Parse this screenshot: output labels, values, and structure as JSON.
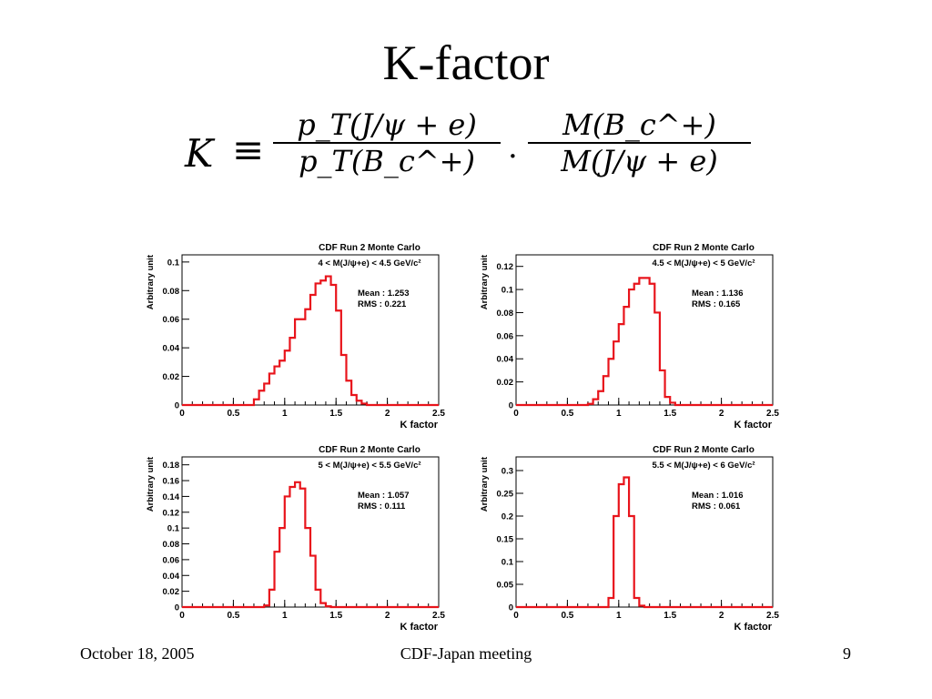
{
  "slide": {
    "title": "K-factor",
    "footer_date": "October 18, 2005",
    "footer_center": "CDF-Japan meeting",
    "footer_page": "9"
  },
  "formula": {
    "lhs": "K",
    "equiv": "≡",
    "frac1_num": "p_T(J/ψ + e)",
    "frac1_den": "p_T(B_c^+)",
    "dot": "·",
    "frac2_num": "M(B_c^+)",
    "frac2_den": "M(J/ψ + e)"
  },
  "colors": {
    "histogram": "#e8141b",
    "axis": "#000000",
    "background": "#ffffff"
  },
  "chart_data": [
    {
      "type": "histogram",
      "title": "CDF Run 2 Monte Carlo",
      "subtitle": "4 < M(J/ψ+e) < 4.5 GeV/c²",
      "xlabel": "K factor",
      "ylabel": "Arbitrary unit",
      "stats": [
        "Mean : 1.253",
        "RMS : 0.221"
      ],
      "xlim": [
        0,
        2.5
      ],
      "ylim": [
        0,
        0.105
      ],
      "xticks": [
        0,
        0.5,
        1,
        1.5,
        2,
        2.5
      ],
      "xtick_labels": [
        "0",
        "0.5",
        "1",
        "1.5",
        "2",
        "2.5"
      ],
      "yticks": [
        0,
        0.02,
        0.04,
        0.06,
        0.08,
        0.1
      ],
      "ytick_labels": [
        "0",
        "0.02",
        "0.04",
        "0.06",
        "0.08",
        "0.1"
      ],
      "bin_width": 0.05,
      "values": [
        0,
        0,
        0,
        0,
        0,
        0,
        0,
        0,
        0,
        0,
        0,
        0,
        0,
        0,
        0.004,
        0.01,
        0.015,
        0.022,
        0.027,
        0.031,
        0.038,
        0.047,
        0.06,
        0.06,
        0.067,
        0.077,
        0.085,
        0.087,
        0.09,
        0.084,
        0.066,
        0.035,
        0.017,
        0.007,
        0.003,
        0.001,
        0,
        0,
        0,
        0,
        0,
        0,
        0,
        0,
        0,
        0,
        0,
        0,
        0,
        0
      ]
    },
    {
      "type": "histogram",
      "title": "CDF Run 2 Monte Carlo",
      "subtitle": "4.5 < M(J/ψ+e) < 5 GeV/c²",
      "xlabel": "K factor",
      "ylabel": "Arbitrary unit",
      "stats": [
        "Mean : 1.136",
        "RMS : 0.165"
      ],
      "xlim": [
        0,
        2.5
      ],
      "ylim": [
        0,
        0.13
      ],
      "xticks": [
        0,
        0.5,
        1,
        1.5,
        2,
        2.5
      ],
      "xtick_labels": [
        "0",
        "0.5",
        "1",
        "1.5",
        "2",
        "2.5"
      ],
      "yticks": [
        0,
        0.02,
        0.04,
        0.06,
        0.08,
        0.1,
        0.12
      ],
      "ytick_labels": [
        "0",
        "0.02",
        "0.04",
        "0.06",
        "0.08",
        "0.1",
        "0.12"
      ],
      "bin_width": 0.05,
      "values": [
        0,
        0,
        0,
        0,
        0,
        0,
        0,
        0,
        0,
        0,
        0,
        0,
        0,
        0,
        0.001,
        0.005,
        0.012,
        0.025,
        0.04,
        0.055,
        0.07,
        0.085,
        0.1,
        0.105,
        0.11,
        0.11,
        0.105,
        0.08,
        0.03,
        0.007,
        0.002,
        0,
        0,
        0,
        0,
        0,
        0,
        0,
        0,
        0,
        0,
        0,
        0,
        0,
        0,
        0,
        0,
        0,
        0,
        0
      ]
    },
    {
      "type": "histogram",
      "title": "CDF Run 2 Monte Carlo",
      "subtitle": "5 < M(J/ψ+e) < 5.5 GeV/c²",
      "xlabel": "K factor",
      "ylabel": "Arbitrary unit",
      "stats": [
        "Mean : 1.057",
        "RMS : 0.111"
      ],
      "xlim": [
        0,
        2.5
      ],
      "ylim": [
        0,
        0.19
      ],
      "xticks": [
        0,
        0.5,
        1,
        1.5,
        2,
        2.5
      ],
      "xtick_labels": [
        "0",
        "0.5",
        "1",
        "1.5",
        "2",
        "2.5"
      ],
      "yticks": [
        0,
        0.02,
        0.04,
        0.06,
        0.08,
        0.1,
        0.12,
        0.14,
        0.16,
        0.18
      ],
      "ytick_labels": [
        "0",
        "0.02",
        "0.04",
        "0.06",
        "0.08",
        "0.1",
        "0.12",
        "0.14",
        "0.16",
        "0.18"
      ],
      "bin_width": 0.05,
      "values": [
        0,
        0,
        0,
        0,
        0,
        0,
        0,
        0,
        0,
        0,
        0,
        0,
        0,
        0,
        0,
        0,
        0.002,
        0.022,
        0.07,
        0.1,
        0.14,
        0.152,
        0.158,
        0.15,
        0.1,
        0.065,
        0.022,
        0.005,
        0.001,
        0,
        0,
        0,
        0,
        0,
        0,
        0,
        0,
        0,
        0,
        0,
        0,
        0,
        0,
        0,
        0,
        0,
        0,
        0,
        0,
        0
      ]
    },
    {
      "type": "histogram",
      "title": "CDF Run 2 Monte Carlo",
      "subtitle": "5.5 < M(J/ψ+e) < 6 GeV/c²",
      "xlabel": "K factor",
      "ylabel": "Arbitrary unit",
      "stats": [
        "Mean : 1.016",
        "RMS : 0.061"
      ],
      "xlim": [
        0,
        2.5
      ],
      "ylim": [
        0,
        0.33
      ],
      "xticks": [
        0,
        0.5,
        1,
        1.5,
        2,
        2.5
      ],
      "xtick_labels": [
        "0",
        "0.5",
        "1",
        "1.5",
        "2",
        "2.5"
      ],
      "yticks": [
        0,
        0.05,
        0.1,
        0.15,
        0.2,
        0.25,
        0.3
      ],
      "ytick_labels": [
        "0",
        "0.05",
        "0.1",
        "0.15",
        "0.2",
        "0.25",
        "0.3"
      ],
      "bin_width": 0.05,
      "values": [
        0,
        0,
        0,
        0,
        0,
        0,
        0,
        0,
        0,
        0,
        0,
        0,
        0,
        0,
        0,
        0,
        0,
        0,
        0.02,
        0.2,
        0.27,
        0.285,
        0.2,
        0.02,
        0.003,
        0,
        0,
        0,
        0,
        0,
        0,
        0,
        0,
        0,
        0,
        0,
        0,
        0,
        0,
        0,
        0,
        0,
        0,
        0,
        0,
        0,
        0,
        0,
        0,
        0
      ]
    }
  ]
}
